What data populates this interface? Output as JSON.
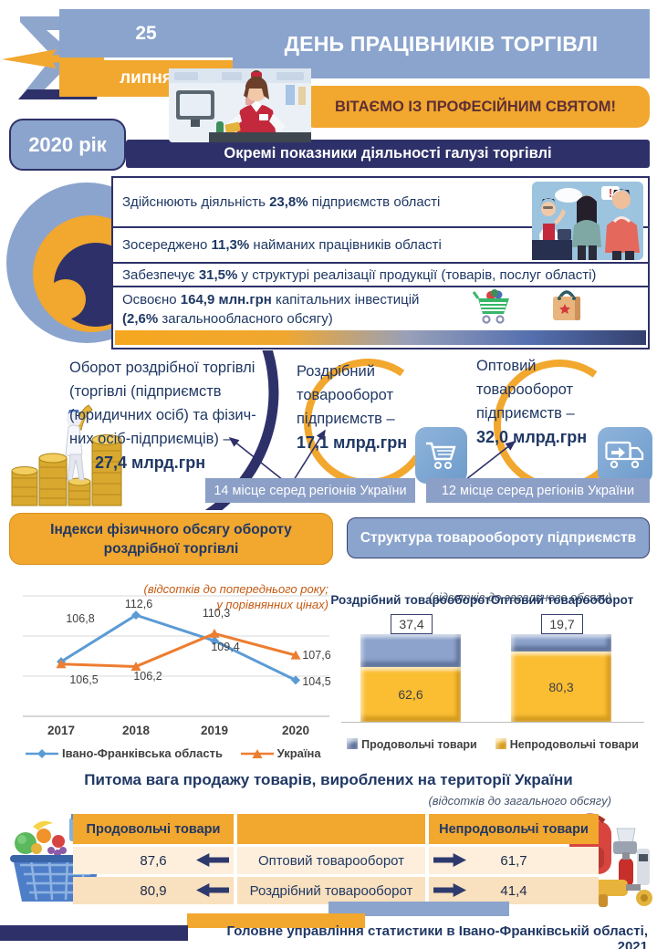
{
  "colors": {
    "accent_orange": "#F2A72E",
    "navy": "#2E3169",
    "slate_blue": "#8BA4CD",
    "badge_blue": "#8C9FC7",
    "line_blue": "#5B9BD5",
    "line_orange": "#ED7D31",
    "bar_blue": "#8DA3CB",
    "bar_yellow": "#FBBE33",
    "text_navy": "#203864",
    "greeting_maroon": "#5E2F34"
  },
  "icons": {
    "logo": "sigma-statistics-logo",
    "stats_investments": [
      "shopping-cart-icon",
      "shopping-bag-icon"
    ],
    "retail": "shopping-cart-icon",
    "wholesale": "delivery-truck-icon"
  },
  "header": {
    "day": "25",
    "month": "липня",
    "title": "ДЕНЬ ПРАЦІВНИКІВ ТОРГІВЛІ",
    "greeting": "ВІТАЄМО  ІЗ ПРОФЕСІЙНИМ  СВЯТОМ!",
    "year": "2020 рік",
    "section_title": "Окремі  показники діяльності   галузі торгівлі"
  },
  "stats": {
    "rows": [
      {
        "s0": "Здійснюють діяльність ",
        "s1": "23,8%",
        "s2": " підприємств  області"
      },
      {
        "s0": "Зосереджено ",
        "s1": "11,3%",
        "s2": " найманих працівників області"
      },
      {
        "s0": "Забезпечує ",
        "s1": "31,5%",
        "s2": " у структурі  реалізації продукції  (товарів, послуг області)"
      },
      {
        "s0": "Освоєно ",
        "s1": "164,9 млн.грн",
        "s2": " капітальних інвестицій",
        "s3": "(2,6%",
        "s4": " загальнообласного обсягу)"
      }
    ]
  },
  "turnover": {
    "retail_total": {
      "l0": "Оборот роздрібної торгівлі",
      "l1": "(торгівлі (підприємств",
      "l2": "(юридичних осіб) та фізич-",
      "l3": "них осіб-підприємців) –",
      "value": "27,4 млрд.грн"
    },
    "retail_enterprises": {
      "l0": "Роздрібний",
      "l1": "товарооборот",
      "l2": "підприємств –",
      "value": "17,1 млрд.грн",
      "badge": "14 місце серед регіонів України"
    },
    "wholesale": {
      "l0": "Оптовий",
      "l1": "товарооборот",
      "l2": "підприємств –",
      "value": "32,0 млрд.грн",
      "badge": "12 місце серед регіонів України"
    }
  },
  "chart_data": [
    {
      "type": "line",
      "title": "Індекси фізичного  обсягу обороту роздрібної  торгівлі",
      "subtitle_lines": [
        "(відсотків до попереднього року;",
        "у порівнянних цінах)"
      ],
      "x": [
        "2017",
        "2018",
        "2019",
        "2020"
      ],
      "series": [
        {
          "name": "Івано-Франківська область",
          "color": "#5B9BD5",
          "marker": "diamond",
          "values": [
            106.8,
            112.6,
            109.4,
            104.5
          ]
        },
        {
          "name": "Україна",
          "color": "#ED7D31",
          "marker": "triangle",
          "values": [
            106.5,
            106.2,
            110.3,
            107.6
          ]
        }
      ],
      "ylim": [
        100,
        115
      ],
      "grid_step": 5,
      "grid": true,
      "legend_position": "bottom"
    },
    {
      "type": "bar",
      "stacked": true,
      "title": "Структура товарообороту підприємств",
      "subtitle": "(відсотків до загального обсягу)",
      "categories": [
        "Роздрібний товарооборот",
        "Оптовий товарооборот"
      ],
      "series": [
        {
          "name": "Продовольчі товари",
          "color": "#8DA3CB",
          "values": [
            37.4,
            19.7
          ]
        },
        {
          "name": "Непродовольчі товари",
          "color": "#FBBE33",
          "values": [
            62.6,
            80.3
          ]
        }
      ],
      "ylim": [
        0,
        100
      ],
      "legend_position": "bottom"
    }
  ],
  "sales_table": {
    "title": "Питома вага продажу товарів, вироблених на території України",
    "subtitle": "(відсотків до загального обсягу)",
    "col_food": "Продовольчі товари",
    "col_nonfood": "Непродовольчі товари",
    "rows": [
      {
        "food": "87,6",
        "label": "Оптовий товарооборот",
        "nonfood": "61,7"
      },
      {
        "food": "80,9",
        "label": "Роздрібний товарооборот",
        "nonfood": "41,4"
      }
    ]
  },
  "footer": {
    "credit": "Головне управління статистики в Івано-Франківській області, 2021"
  }
}
